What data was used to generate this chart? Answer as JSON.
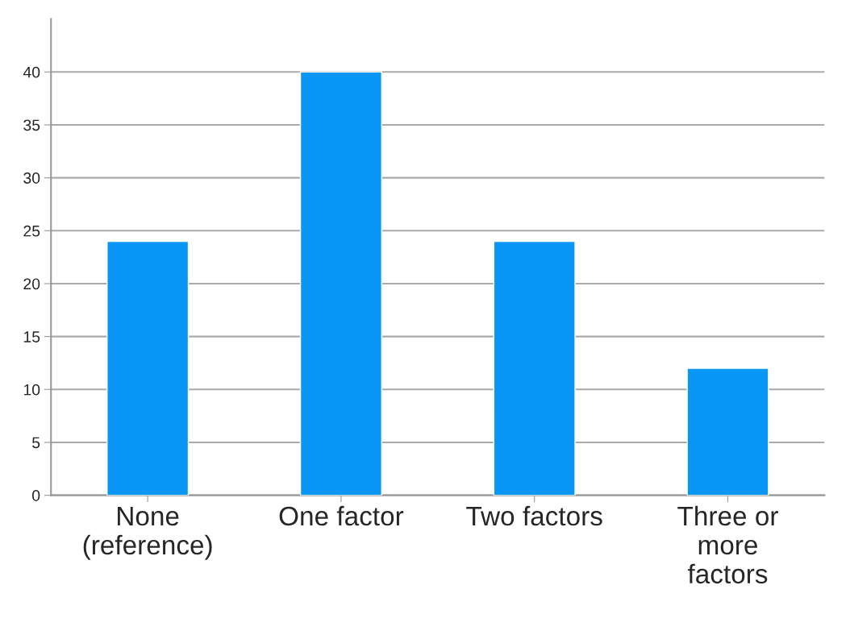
{
  "chart_data": {
    "type": "bar",
    "categories": [
      "None\n(reference)",
      "One factor",
      "Two factors",
      "Three or\nmore\nfactors"
    ],
    "values": [
      24,
      40,
      24,
      12
    ],
    "color": "#0a96f5",
    "ylim": [
      0,
      45
    ],
    "yticks": [
      0,
      5,
      10,
      15,
      20,
      25,
      30,
      35,
      40
    ],
    "grid": "y"
  }
}
